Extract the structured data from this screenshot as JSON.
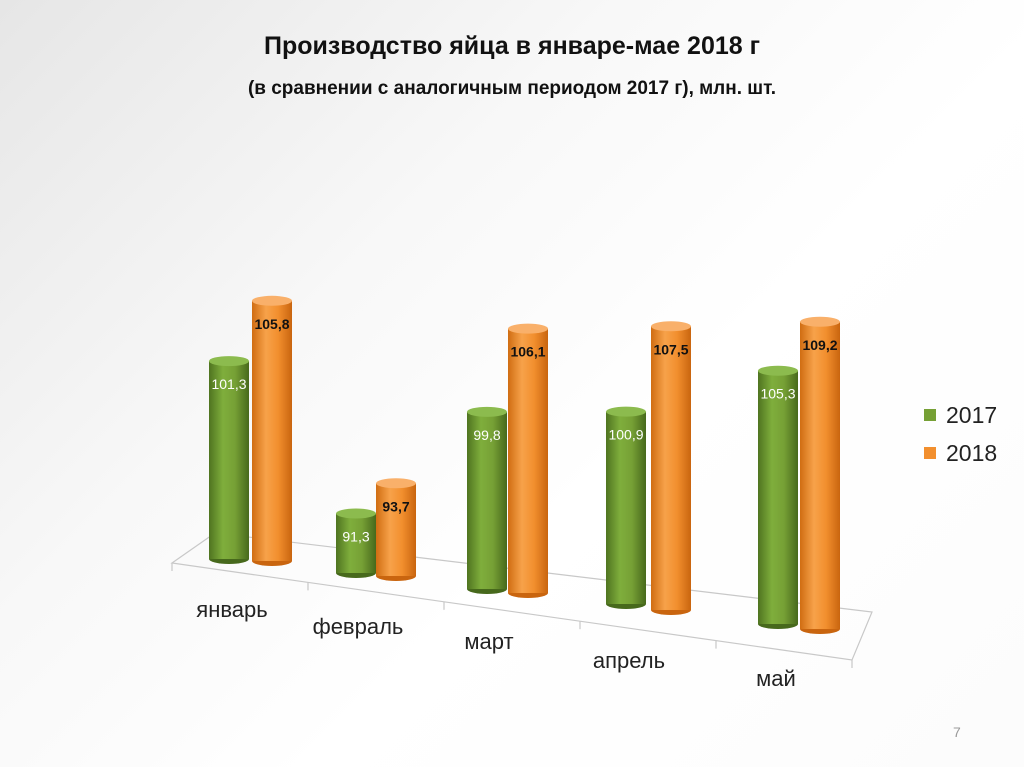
{
  "title": "Производство яйца в январе-мае 2018 г",
  "subtitle": "(в сравнении с аналогичным периодом 2017 г), млн. шт.",
  "page_number": "7",
  "colors": {
    "series_2017": "#76a035",
    "series_2018": "#f28f2e"
  },
  "legend": [
    {
      "label": "2017",
      "color": "#76a035"
    },
    {
      "label": "2018",
      "color": "#f28f2e"
    }
  ],
  "chart_data": {
    "type": "bar",
    "categories": [
      "январь",
      "февраль",
      "март",
      "апрель",
      "май"
    ],
    "series": [
      {
        "name": "2017",
        "values": [
          101.3,
          91.3,
          99.8,
          100.9,
          105.3
        ],
        "labels": [
          "101,3",
          "91,3",
          "99,8",
          "100,9",
          "105,3"
        ]
      },
      {
        "name": "2018",
        "values": [
          105.8,
          93.7,
          106.1,
          107.5,
          109.2
        ],
        "labels": [
          "105,8",
          "93,7",
          "106,1",
          "107,5",
          "109,2"
        ]
      }
    ],
    "legend_position": "right",
    "grid": false
  }
}
